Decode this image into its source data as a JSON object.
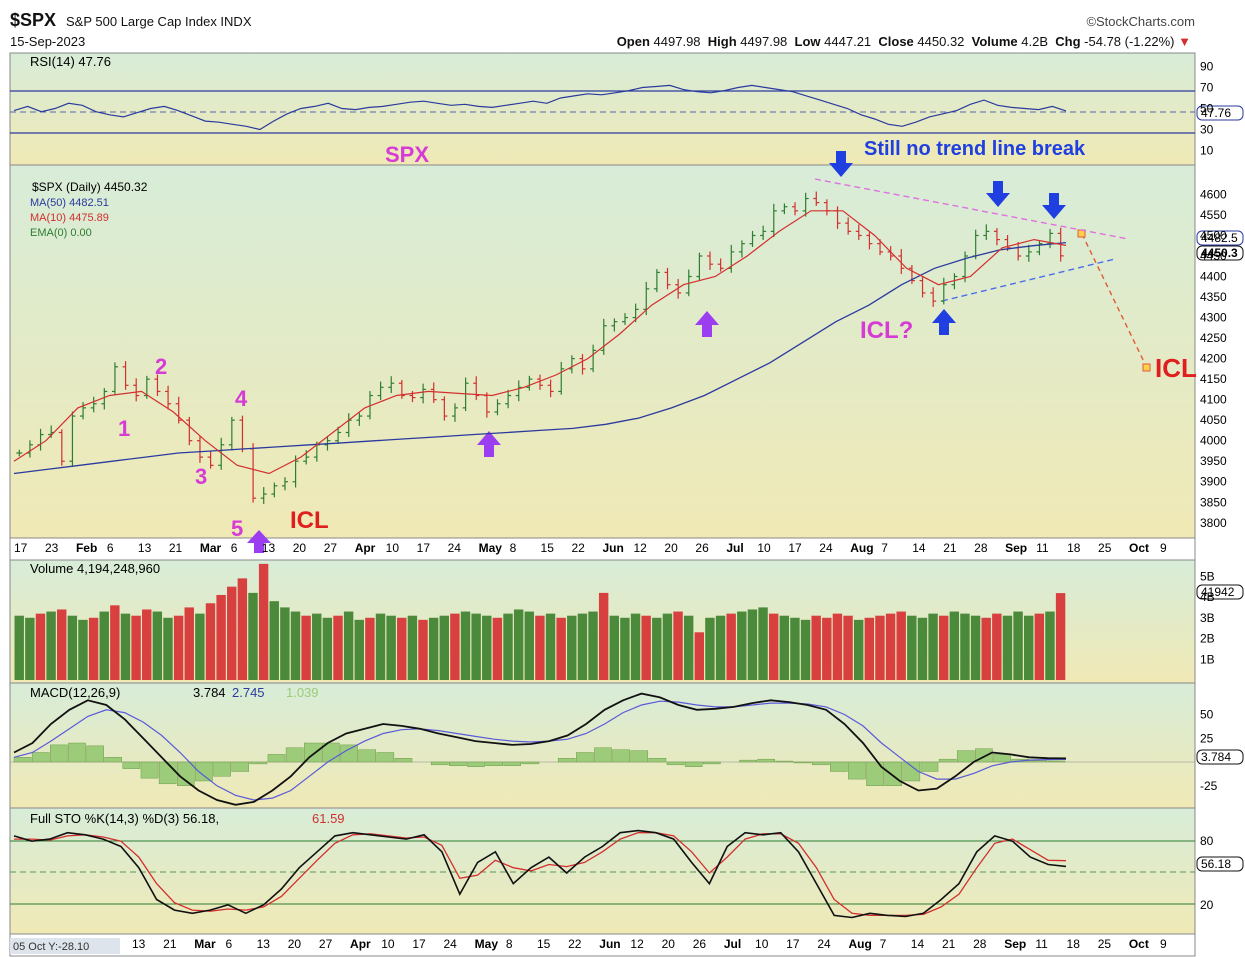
{
  "header": {
    "symbol": "$SPX",
    "name": "S&P 500 Large Cap Index INDX",
    "date": "15-Sep-2023",
    "brand": "©StockCharts.com",
    "open_label": "Open",
    "open": "4497.98",
    "high_label": "High",
    "high": "4497.98",
    "low_label": "Low",
    "low": "4447.21",
    "close_label": "Close",
    "close": "4450.32",
    "volume_label": "Volume",
    "volume": "4.2B",
    "chg_label": "Chg",
    "chg": "-54.78 (-1.22%)"
  },
  "colors": {
    "up": "#2e7d32",
    "down": "#d32f2f",
    "ma50": "#2a3a9e",
    "ma10": "#d32f2f",
    "annot_pink": "#d63bd6",
    "annot_blue": "#1f3fe0",
    "annot_red": "#e01e1e",
    "arrow_purple": "#9b3df0"
  },
  "chart_data": [
    {
      "panel": "RSI",
      "type": "line",
      "legend": "RSI(14) 47.76",
      "last": "47.76",
      "ylim": [
        0,
        100
      ],
      "y_ticks": [
        "90",
        "70",
        "50",
        "30",
        "10"
      ],
      "reference_lines": [
        70,
        30
      ],
      "values": [
        48,
        52,
        47,
        50,
        55,
        53,
        47,
        44,
        42,
        46,
        50,
        52,
        48,
        43,
        38,
        37,
        35,
        33,
        30,
        38,
        45,
        50,
        52,
        55,
        50,
        49,
        51,
        52,
        54,
        56,
        57,
        55,
        53,
        54,
        52,
        51,
        53,
        55,
        57,
        55,
        60,
        62,
        64,
        63,
        65,
        67,
        70,
        71,
        72,
        68,
        66,
        65,
        67,
        70,
        72,
        70,
        68,
        66,
        62,
        58,
        54,
        50,
        44,
        40,
        35,
        33,
        37,
        42,
        45,
        48,
        54,
        58,
        53,
        51,
        50,
        49,
        52,
        47.76
      ]
    },
    {
      "panel": "Price",
      "type": "candlestick",
      "legend": [
        "$SPX (Daily) 4450.32",
        "MA(50) 4482.51",
        "MA(10) 4475.89",
        "EMA(0) 0.00"
      ],
      "last_price_tags": [
        "4482.5",
        "4450.3"
      ],
      "ylim": [
        3780,
        4640
      ],
      "y_ticks": [
        "4600",
        "4550",
        "4500",
        "4450",
        "4400",
        "4350",
        "4300",
        "4250",
        "4200",
        "4150",
        "4100",
        "4050",
        "4000",
        "3950",
        "3900",
        "3850",
        "3800"
      ],
      "x_ticks": [
        "17",
        "23",
        "Feb",
        "6",
        "13",
        "21",
        "Mar",
        "6",
        "13",
        "20",
        "27",
        "Apr",
        "10",
        "17",
        "24",
        "May",
        "8",
        "15",
        "22",
        "Jun",
        "12",
        "20",
        "26",
        "Jul",
        "10",
        "17",
        "24",
        "Aug",
        "7",
        "14",
        "21",
        "28",
        "Sep",
        "11",
        "18",
        "25",
        "Oct",
        "9"
      ],
      "closes": [
        3970,
        3990,
        4015,
        4020,
        3950,
        4060,
        4080,
        4090,
        4120,
        4180,
        4135,
        4110,
        4150,
        4120,
        4090,
        4050,
        4000,
        3960,
        3940,
        3990,
        4050,
        3980,
        3860,
        3870,
        3890,
        3900,
        3950,
        3960,
        3990,
        4000,
        4020,
        4050,
        4060,
        4110,
        4130,
        4140,
        4110,
        4105,
        4125,
        4100,
        4060,
        4080,
        4140,
        4110,
        4070,
        4090,
        4110,
        4130,
        4150,
        4135,
        4120,
        4175,
        4200,
        4175,
        4220,
        4280,
        4290,
        4300,
        4320,
        4370,
        4410,
        4380,
        4360,
        4400,
        4450,
        4430,
        4420,
        4460,
        4480,
        4500,
        4510,
        4560,
        4570,
        4560,
        4590,
        4580,
        4560,
        4530,
        4510,
        4500,
        4480,
        4460,
        4450,
        4420,
        4390,
        4360,
        4340,
        4380,
        4400,
        4450,
        4500,
        4510,
        4490,
        4470,
        4450,
        4460,
        4480,
        4505,
        4450.32
      ],
      "ma50_values": [
        3920,
        3930,
        3940,
        3950,
        3960,
        3970,
        3975,
        3980,
        3985,
        3990,
        3995,
        4000,
        4005,
        4010,
        4015,
        4020,
        4025,
        4030,
        4040,
        4055,
        4080,
        4110,
        4150,
        4190,
        4240,
        4290,
        4330,
        4380,
        4420,
        4445,
        4465,
        4475,
        4482.51
      ],
      "ma10_values": [
        3950,
        4000,
        4080,
        4110,
        4120,
        4070,
        4000,
        3940,
        3920,
        3960,
        4020,
        4080,
        4110,
        4120,
        4115,
        4110,
        4130,
        4160,
        4200,
        4260,
        4330,
        4380,
        4400,
        4450,
        4510,
        4560,
        4560,
        4500,
        4420,
        4380,
        4400,
        4470,
        4490,
        4475.89
      ]
    },
    {
      "panel": "Volume",
      "type": "bar",
      "legend": "Volume 4,194,248,960",
      "last": "41942",
      "y_ticks": [
        "5B",
        "4B",
        "3B",
        "2B",
        "1B"
      ],
      "values": [
        3.1,
        3.0,
        3.2,
        3.3,
        3.4,
        3.1,
        2.9,
        3.0,
        3.3,
        3.6,
        3.2,
        3.1,
        3.4,
        3.3,
        3.0,
        3.1,
        3.5,
        3.2,
        3.7,
        4.1,
        4.5,
        4.9,
        4.2,
        5.6,
        3.8,
        3.5,
        3.3,
        3.1,
        3.2,
        3.0,
        3.1,
        3.3,
        2.9,
        3.0,
        3.2,
        3.1,
        3.0,
        3.1,
        2.9,
        3.0,
        3.1,
        3.2,
        3.3,
        3.2,
        3.1,
        3.0,
        3.2,
        3.4,
        3.3,
        3.1,
        3.2,
        3.0,
        3.1,
        3.2,
        3.3,
        4.2,
        3.1,
        3.0,
        3.2,
        3.1,
        3.0,
        3.2,
        3.3,
        3.1,
        2.3,
        3.0,
        3.1,
        3.2,
        3.3,
        3.4,
        3.5,
        3.2,
        3.1,
        3.0,
        2.9,
        3.1,
        3.0,
        3.2,
        3.1,
        2.9,
        3.0,
        3.1,
        3.2,
        3.3,
        3.1,
        3.0,
        3.2,
        3.1,
        3.3,
        3.2,
        3.1,
        3.0,
        3.2,
        3.1,
        3.3,
        3.1,
        3.2,
        3.3,
        4.19
      ],
      "up_flags": [
        1,
        1,
        0,
        1,
        0,
        1,
        1,
        0,
        1,
        0,
        1,
        0,
        0,
        1,
        1,
        0,
        0,
        1,
        0,
        0,
        0,
        0,
        1,
        0,
        1,
        1,
        1,
        0,
        1,
        1,
        0,
        1,
        1,
        0,
        1,
        1,
        0,
        1,
        0,
        1,
        1,
        0,
        1,
        1,
        1,
        0,
        1,
        1,
        1,
        0,
        1,
        0,
        1,
        1,
        1,
        0,
        1,
        1,
        1,
        0,
        1,
        1,
        0,
        1,
        0,
        1,
        1,
        0,
        1,
        1,
        1,
        0,
        1,
        1,
        1,
        0,
        0,
        0,
        0,
        1,
        0,
        0,
        0,
        0,
        1,
        1,
        1,
        0,
        1,
        1,
        1,
        0,
        0,
        1,
        1,
        1,
        0,
        1,
        0
      ]
    },
    {
      "panel": "MACD",
      "type": "line",
      "legend": [
        "MACD(12,26,9)",
        "3.784",
        "2.745",
        "1.039"
      ],
      "last": "3.784",
      "y_ticks": [
        "50",
        "25",
        "",
        "-25"
      ],
      "macd": [
        10,
        20,
        40,
        55,
        65,
        60,
        45,
        25,
        5,
        -15,
        -30,
        -40,
        -45,
        -42,
        -30,
        -15,
        5,
        20,
        30,
        35,
        40,
        38,
        35,
        30,
        26,
        22,
        20,
        18,
        19,
        22,
        28,
        40,
        55,
        65,
        72,
        68,
        60,
        55,
        56,
        58,
        62,
        65,
        63,
        60,
        55,
        40,
        20,
        -5,
        -20,
        -30,
        -28,
        -15,
        0,
        10,
        8,
        5,
        4,
        3.8
      ],
      "signal": [
        5,
        10,
        22,
        35,
        48,
        55,
        52,
        42,
        28,
        10,
        -10,
        -25,
        -35,
        -40,
        -38,
        -30,
        -15,
        0,
        12,
        22,
        30,
        34,
        35,
        33,
        30,
        27,
        24,
        22,
        21,
        22,
        24,
        30,
        40,
        52,
        60,
        64,
        63,
        60,
        58,
        58,
        60,
        62,
        62,
        61,
        58,
        50,
        38,
        20,
        5,
        -10,
        -18,
        -18,
        -12,
        -4,
        0,
        2,
        2.5,
        2.745
      ]
    },
    {
      "panel": "Full STO",
      "type": "line",
      "legend": [
        "Full STO %K(14,3) %D(3) 56.18,",
        "61.59"
      ],
      "last": "56.18",
      "y_ticks": [
        "80",
        "20"
      ],
      "k": [
        85,
        80,
        82,
        88,
        86,
        82,
        75,
        55,
        25,
        15,
        12,
        15,
        20,
        12,
        20,
        35,
        55,
        70,
        85,
        88,
        86,
        84,
        82,
        86,
        70,
        30,
        60,
        70,
        40,
        55,
        65,
        50,
        65,
        75,
        88,
        90,
        88,
        82,
        60,
        40,
        75,
        88,
        86,
        88,
        70,
        40,
        10,
        8,
        12,
        10,
        9,
        12,
        25,
        40,
        70,
        85,
        80,
        65,
        58,
        56.18
      ],
      "d": [
        82,
        82,
        81,
        85,
        86,
        84,
        80,
        65,
        40,
        22,
        15,
        14,
        16,
        15,
        18,
        28,
        45,
        62,
        78,
        86,
        87,
        85,
        83,
        84,
        76,
        45,
        48,
        62,
        55,
        52,
        58,
        56,
        60,
        70,
        82,
        88,
        88,
        85,
        70,
        50,
        65,
        82,
        87,
        87,
        78,
        55,
        25,
        12,
        10,
        10,
        10,
        11,
        18,
        30,
        55,
        78,
        82,
        72,
        62,
        61.59
      ]
    }
  ],
  "annotations": {
    "spx_label": "SPX",
    "trend_note": "Still no trend line break",
    "wave_labels": [
      "1",
      "2",
      "3",
      "4",
      "5"
    ],
    "icl_march": "ICL",
    "icl_aug": "ICL?",
    "icl_future": "ICL"
  },
  "footer": {
    "left_note": "05 Oct Y:-28.10",
    "x_ticks": [
      "13",
      "21",
      "Mar",
      "6",
      "13",
      "20",
      "27",
      "Apr",
      "10",
      "17",
      "24",
      "May",
      "8",
      "15",
      "22",
      "Jun",
      "12",
      "20",
      "26",
      "Jul",
      "10",
      "17",
      "24",
      "Aug",
      "7",
      "14",
      "21",
      "28",
      "Sep",
      "11",
      "18",
      "25",
      "Oct",
      "9"
    ]
  }
}
